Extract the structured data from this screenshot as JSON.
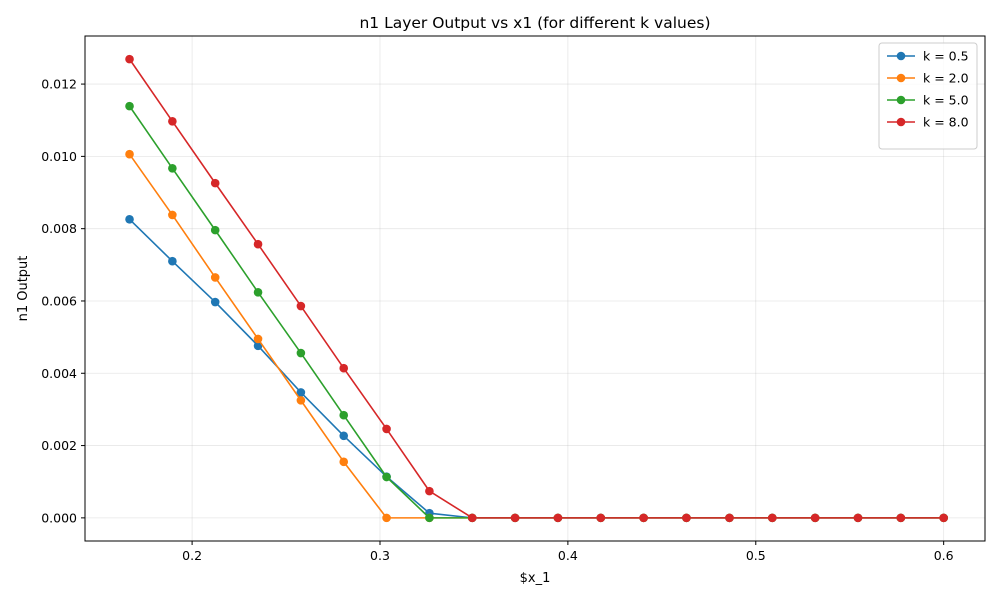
{
  "chart_data": {
    "type": "line",
    "title": "n1 Layer Output vs x1 (for different k values)",
    "xlabel": "$x_1",
    "ylabel": "n1 Output",
    "xlim": [
      0.143,
      0.622
    ],
    "ylim": [
      -0.00064,
      0.01333
    ],
    "xticks": [
      0.2,
      0.3,
      0.4,
      0.5,
      0.6
    ],
    "xtick_labels": [
      "0.2",
      "0.3",
      "0.4",
      "0.5",
      "0.6"
    ],
    "yticks": [
      0.0,
      0.002,
      0.004,
      0.006,
      0.008,
      0.01,
      0.012
    ],
    "ytick_labels": [
      "0.000",
      "0.002",
      "0.004",
      "0.006",
      "0.008",
      "0.010",
      "0.012"
    ],
    "grid": true,
    "legend_position": "top-right",
    "x": [
      0.1667,
      0.1895,
      0.2123,
      0.2351,
      0.2579,
      0.2807,
      0.3035,
      0.3263,
      0.3491,
      0.3719,
      0.3947,
      0.4175,
      0.4403,
      0.4631,
      0.486,
      0.5088,
      0.5316,
      0.5544,
      0.5772,
      0.6
    ],
    "series": [
      {
        "name": "k = 0.5",
        "color": "#1f77b4",
        "values": [
          0.00826,
          0.0071,
          0.00597,
          0.00476,
          0.00347,
          0.00227,
          0.00114,
          0.00013,
          0.0,
          0.0,
          0.0,
          0.0,
          0.0,
          0.0,
          0.0,
          0.0,
          0.0,
          0.0,
          0.0,
          0.0
        ]
      },
      {
        "name": "k = 2.0",
        "color": "#ff7f0e",
        "values": [
          0.01006,
          0.00838,
          0.00665,
          0.00495,
          0.00325,
          0.00155,
          0.0,
          0.0,
          0.0,
          0.0,
          0.0,
          0.0,
          0.0,
          0.0,
          0.0,
          0.0,
          0.0,
          0.0,
          0.0,
          0.0
        ]
      },
      {
        "name": "k = 5.0",
        "color": "#2ca02c",
        "values": [
          0.01139,
          0.00967,
          0.00796,
          0.00624,
          0.00456,
          0.00284,
          0.00113,
          0.0,
          0.0,
          0.0,
          0.0,
          0.0,
          0.0,
          0.0,
          0.0,
          0.0,
          0.0,
          0.0,
          0.0,
          0.0
        ]
      },
      {
        "name": "k = 8.0",
        "color": "#d62728",
        "values": [
          0.01269,
          0.01097,
          0.00926,
          0.00757,
          0.00586,
          0.00414,
          0.00246,
          0.00074,
          0.0,
          0.0,
          0.0,
          0.0,
          0.0,
          0.0,
          0.0,
          0.0,
          0.0,
          0.0,
          0.0,
          0.0
        ]
      }
    ]
  }
}
